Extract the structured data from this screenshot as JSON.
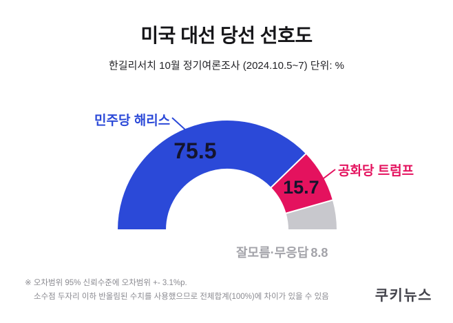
{
  "header": {
    "title": "미국 대선 당선 선호도",
    "subtitle": "한길리서치 10월 정기여론조사 (2024.10.5~7) 단위: %"
  },
  "chart_data": {
    "type": "half-donut",
    "unit": "%",
    "total": 100,
    "start_angle_deg": 180,
    "end_angle_deg": 0,
    "segments": [
      {
        "label": "민주당 해리스",
        "value": 75.5,
        "color": "#2b49d8",
        "value_color": "#14142d",
        "show_value_inside": true
      },
      {
        "label": "공화당 트럼프",
        "value": 15.7,
        "color": "#e4125e",
        "value_color": "#14142d",
        "show_value_inside": true
      },
      {
        "label": "잘모름·무응답",
        "value": 8.8,
        "color": "#c8c8cd",
        "value_color": "#a3a3a9",
        "show_value_inside": false
      }
    ]
  },
  "footnotes": {
    "line1": "※ 오차범위 95% 신뢰수준에 오차범위 +- 3.1%p.",
    "line2": "소수점 두자리 이하 반올림된 수치를 사용했으므로 전체합계(100%)에 차이가 있을 수 있음"
  },
  "logo": {
    "text": "쿠키뉴스"
  }
}
